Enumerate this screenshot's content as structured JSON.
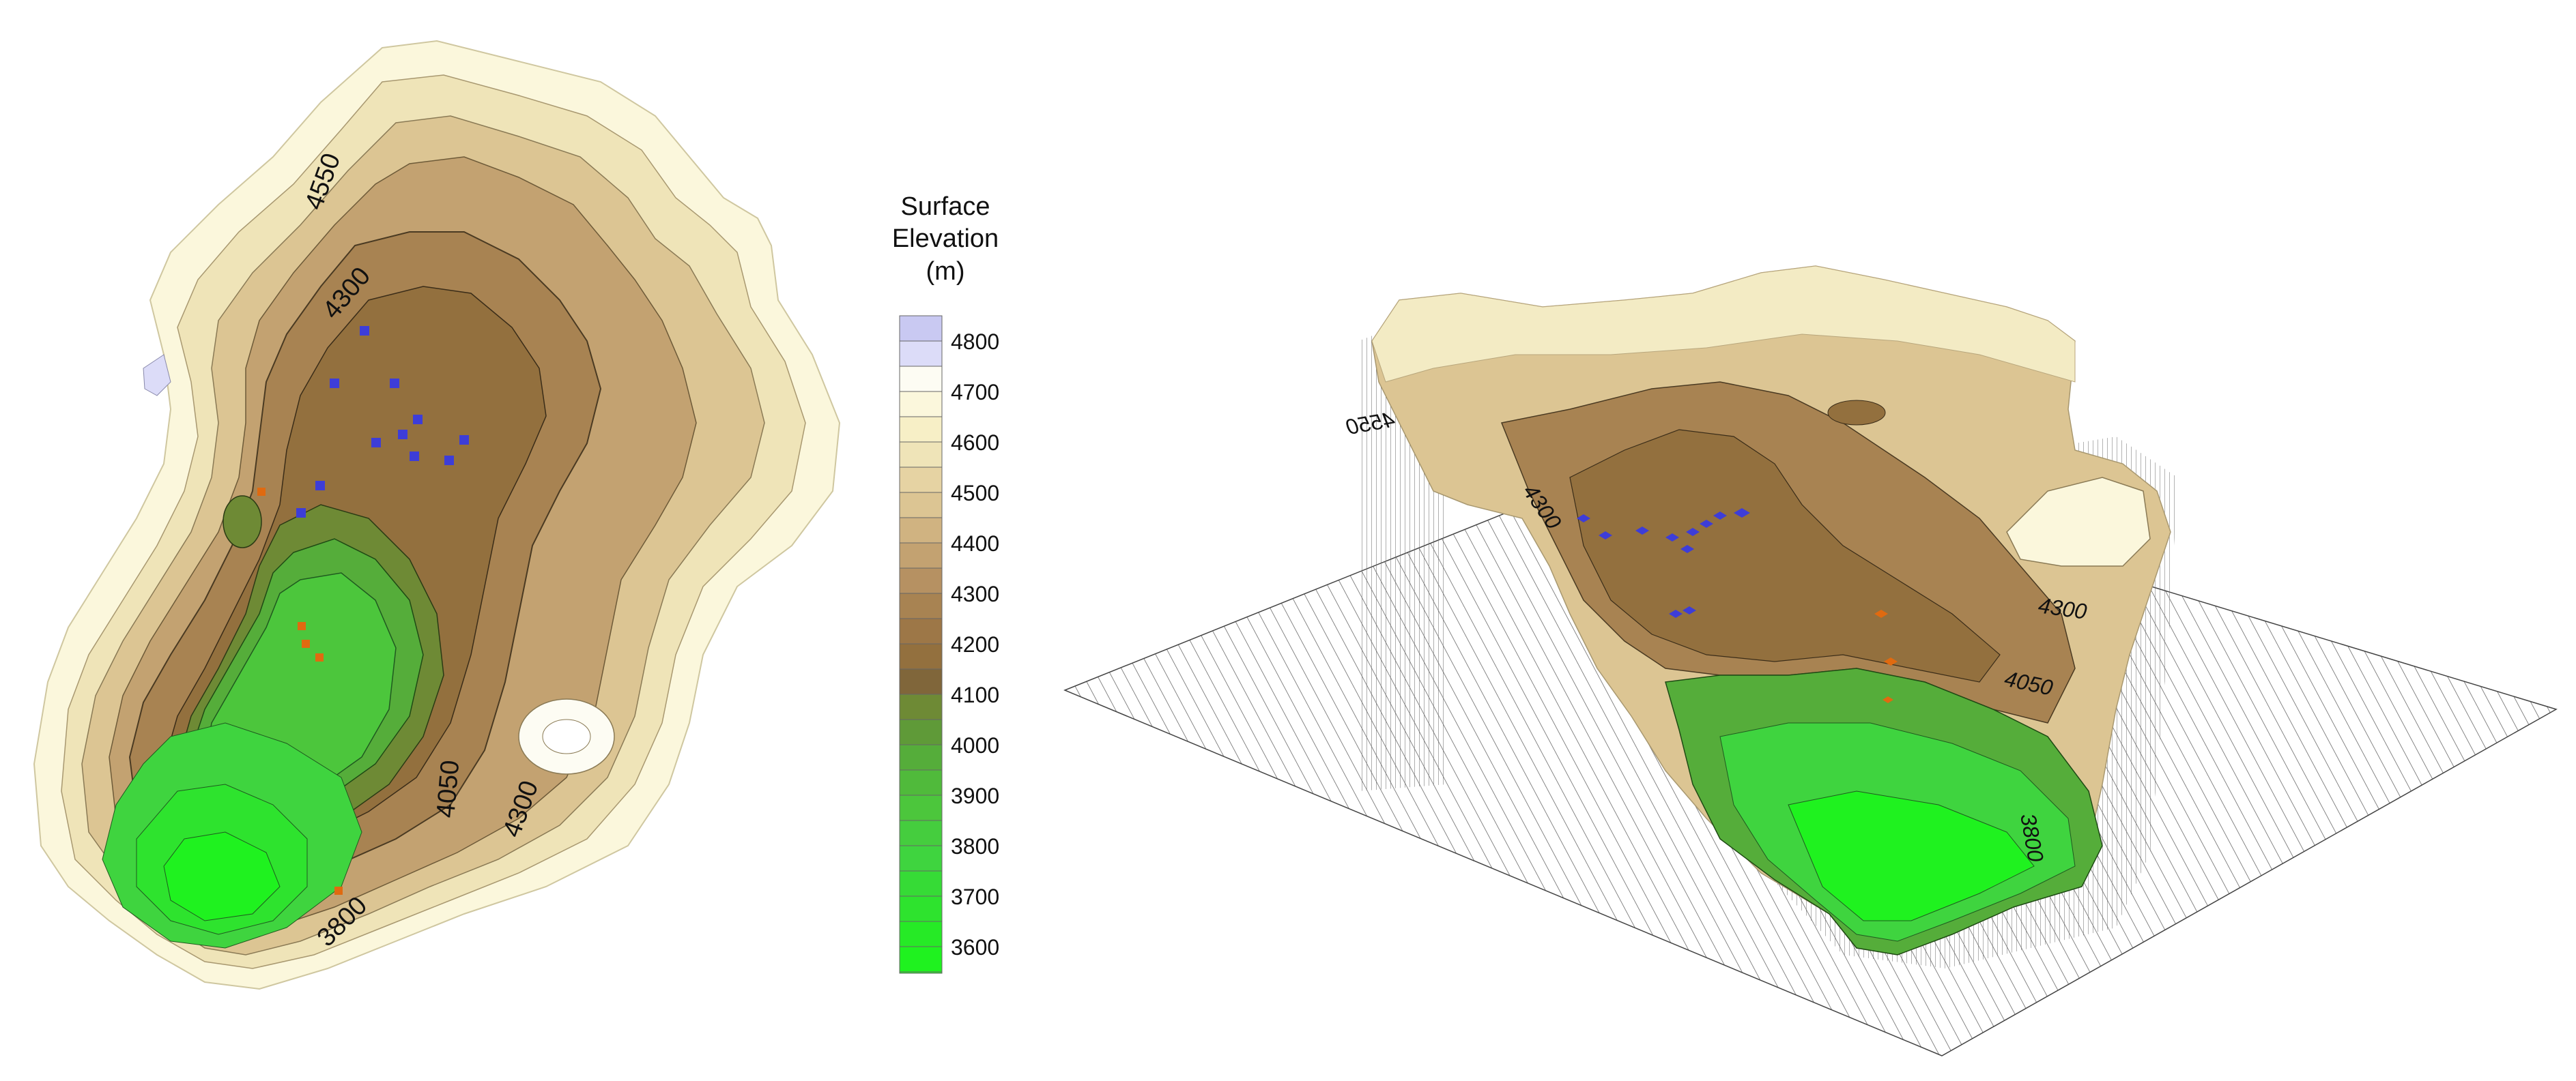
{
  "colors": {
    "band_3600": "#1ff21f",
    "band_3700": "#2ee32e",
    "band_3800": "#3fd43f",
    "band_3900": "#4cc63c",
    "band_4000": "#55ad3a",
    "band_4100": "#6e8a35",
    "band_4200": "#93703e",
    "band_4300": "#a88352",
    "band_4400": "#c3a271",
    "band_4500": "#dcc593",
    "band_4600": "#efe4b8",
    "band_4700": "#fbf7dc",
    "band_4800": "#fdfcf3",
    "band_top": "#dcdcf8",
    "well_blue": "#3d3dd8",
    "well_orange": "#e06a10",
    "contour": "#2b2b2b"
  },
  "left_map": {
    "contour_labels": [
      "4550",
      "4300",
      "4050",
      "4300",
      "3800"
    ]
  },
  "legend": {
    "title_line1": "Surface",
    "title_line2": "Elevation",
    "title_line3": "(m)",
    "ticks": [
      "4800",
      "4700",
      "4600",
      "4500",
      "4400",
      "4300",
      "4200",
      "4100",
      "4000",
      "3900",
      "3800",
      "3700",
      "3600"
    ]
  },
  "right_map": {
    "contour_labels": [
      "4550",
      "4300",
      "4300",
      "4050",
      "3800"
    ]
  }
}
